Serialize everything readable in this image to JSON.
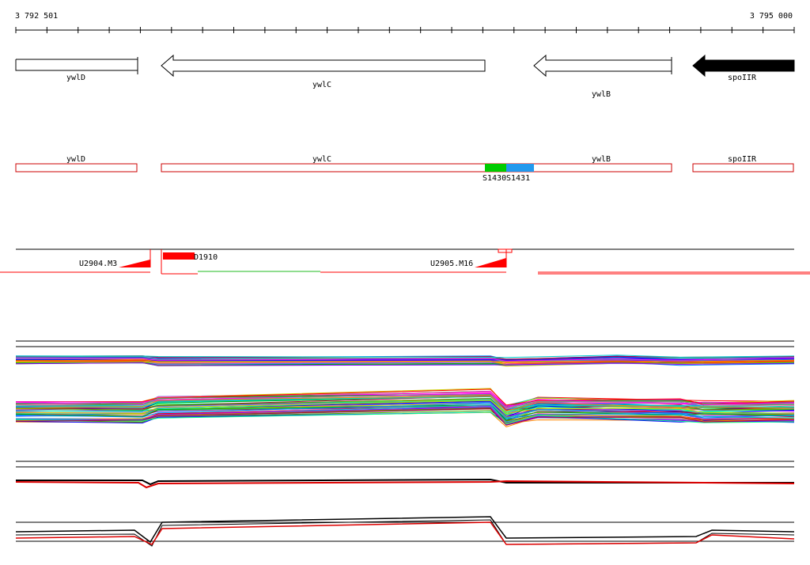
{
  "ruler": {
    "start_label": "3 792 501",
    "end_label": "3 795 000"
  },
  "genes": [
    {
      "name": "ywlD",
      "strand": "-",
      "filled": false
    },
    {
      "name": "ywlC",
      "strand": "-",
      "filled": false
    },
    {
      "name": "ywlB",
      "strand": "-",
      "filled": false
    },
    {
      "name": "spoIIR",
      "strand": "-",
      "filled": true
    }
  ],
  "segments": [
    {
      "label": "ywlD"
    },
    {
      "label": "ywlC"
    },
    {
      "label": "ywlB"
    },
    {
      "label": "spoIIR"
    }
  ],
  "segment_features": [
    {
      "label": "S1430",
      "color": "#00cc00"
    },
    {
      "label": "S1431",
      "color": "#2299ee"
    }
  ],
  "markers": [
    {
      "label": "U2904.M3"
    },
    {
      "label": "D1910"
    },
    {
      "label": "U2905.M16"
    }
  ],
  "colors": {
    "outline": "#000000",
    "segment": "#cc0000",
    "marker": "#ff0000",
    "filled_gene": "#000000"
  }
}
